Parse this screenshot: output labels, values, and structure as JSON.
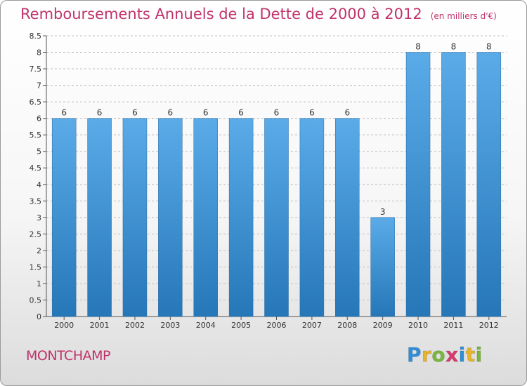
{
  "title": "Remboursements Annuels de la Dette de 2000 à 2012",
  "unit_label": "(en milliers d'€)",
  "commune": "MONTCHAMP",
  "logo": {
    "text": "Proxiti",
    "letters": [
      {
        "ch": "P",
        "color": "#2e8fd8"
      },
      {
        "ch": "r",
        "color": "#e8b52a"
      },
      {
        "ch": "o",
        "color": "#7ab83b"
      },
      {
        "ch": "x",
        "color": "#d93a6e"
      },
      {
        "ch": "i",
        "color": "#2e8fd8"
      },
      {
        "ch": "t",
        "color": "#e8b52a"
      },
      {
        "ch": "i",
        "color": "#7ab83b"
      }
    ]
  },
  "colors": {
    "bar_top": "#5aabe8",
    "bar_bottom": "#2677b8",
    "title": "#c0336a",
    "grid": "#bfbfbf"
  },
  "chart_data": {
    "type": "bar",
    "title": "Remboursements Annuels de la Dette de 2000 à 2012",
    "xlabel": "",
    "ylabel": "",
    "categories": [
      "2000",
      "2001",
      "2002",
      "2003",
      "2004",
      "2005",
      "2006",
      "2007",
      "2008",
      "2009",
      "2010",
      "2011",
      "2012"
    ],
    "values": [
      6,
      6,
      6,
      6,
      6,
      6,
      6,
      6,
      6,
      3,
      8,
      8,
      8
    ],
    "data_labels": [
      "6",
      "6",
      "6",
      "6",
      "6",
      "6",
      "6",
      "6",
      "6",
      "3",
      "8",
      "8",
      "8"
    ],
    "ylim": [
      0,
      8.5
    ],
    "yticks": [
      0,
      0.5,
      1,
      1.5,
      2,
      2.5,
      3,
      3.5,
      4,
      4.5,
      5,
      5.5,
      6,
      6.5,
      7,
      7.5,
      8,
      8.5
    ],
    "ytick_labels": [
      "0",
      "0.5",
      "1",
      "1.5",
      "2",
      "2.5",
      "3",
      "3.5",
      "4",
      "4.5",
      "5",
      "5.5",
      "6",
      "6.5",
      "7",
      "7.5",
      "8",
      "8.5"
    ],
    "grid": "horizontal-dashed",
    "legend": "none"
  }
}
